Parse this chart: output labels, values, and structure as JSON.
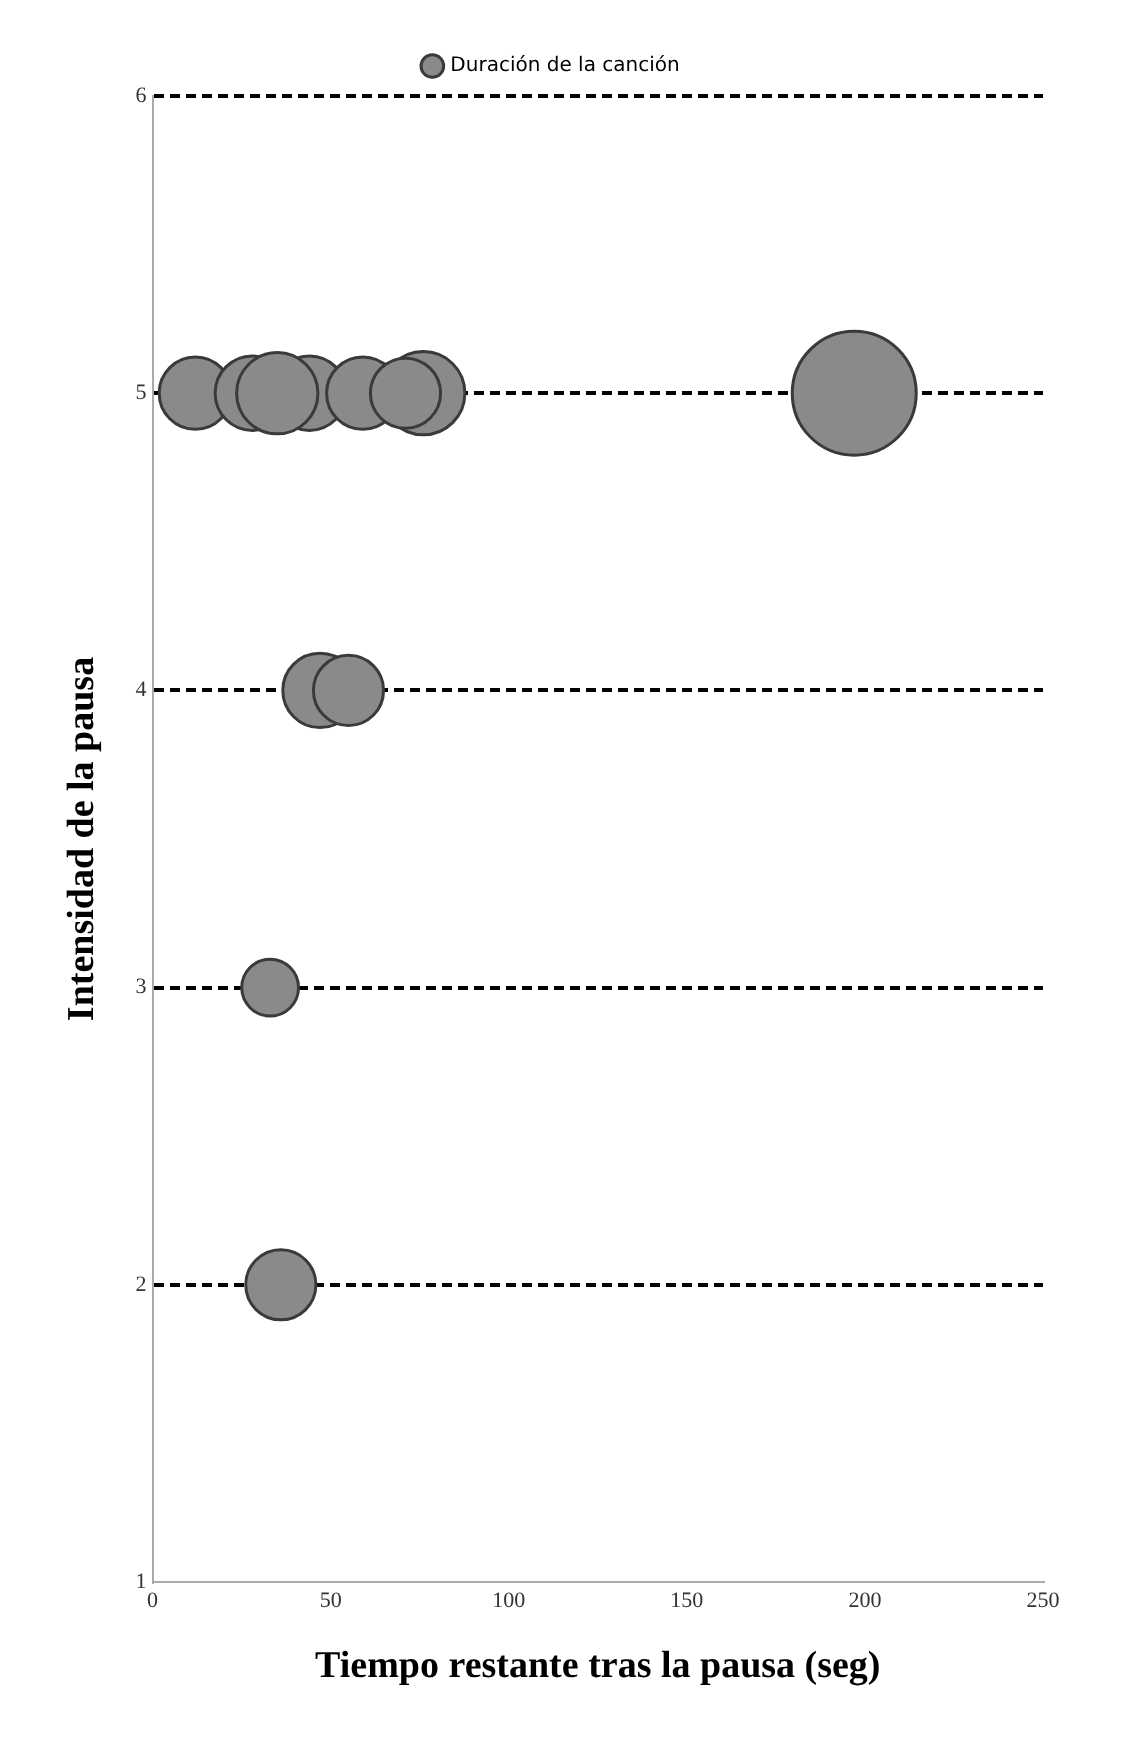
{
  "chart_data": {
    "type": "bubble",
    "xlabel": "Tiempo restante tras la pausa (seg)",
    "ylabel": "Intensidad de la pausa",
    "x": [
      12,
      28,
      44,
      35,
      59,
      76,
      71,
      197,
      47,
      55,
      33,
      36
    ],
    "series": [
      {
        "name": "Duración de la canción",
        "color": "#8a8a8a",
        "values": [
          5,
          5,
          5,
          5,
          5,
          5,
          5,
          5,
          4,
          4,
          3,
          2
        ],
        "sizes": [
          0.34,
          0.36,
          0.36,
          0.43,
          0.34,
          0.45,
          0.32,
          1,
          0.36,
          0.32,
          0.21,
          0.32
        ]
      }
    ],
    "xlim": [
      0,
      250
    ],
    "xticks": [
      0,
      50,
      100,
      150,
      200,
      250
    ],
    "ylim": [
      1,
      6
    ],
    "yticks": [
      1,
      2,
      3,
      4,
      5,
      6
    ],
    "grid": "y",
    "legend": "top",
    "marker": "circle"
  }
}
